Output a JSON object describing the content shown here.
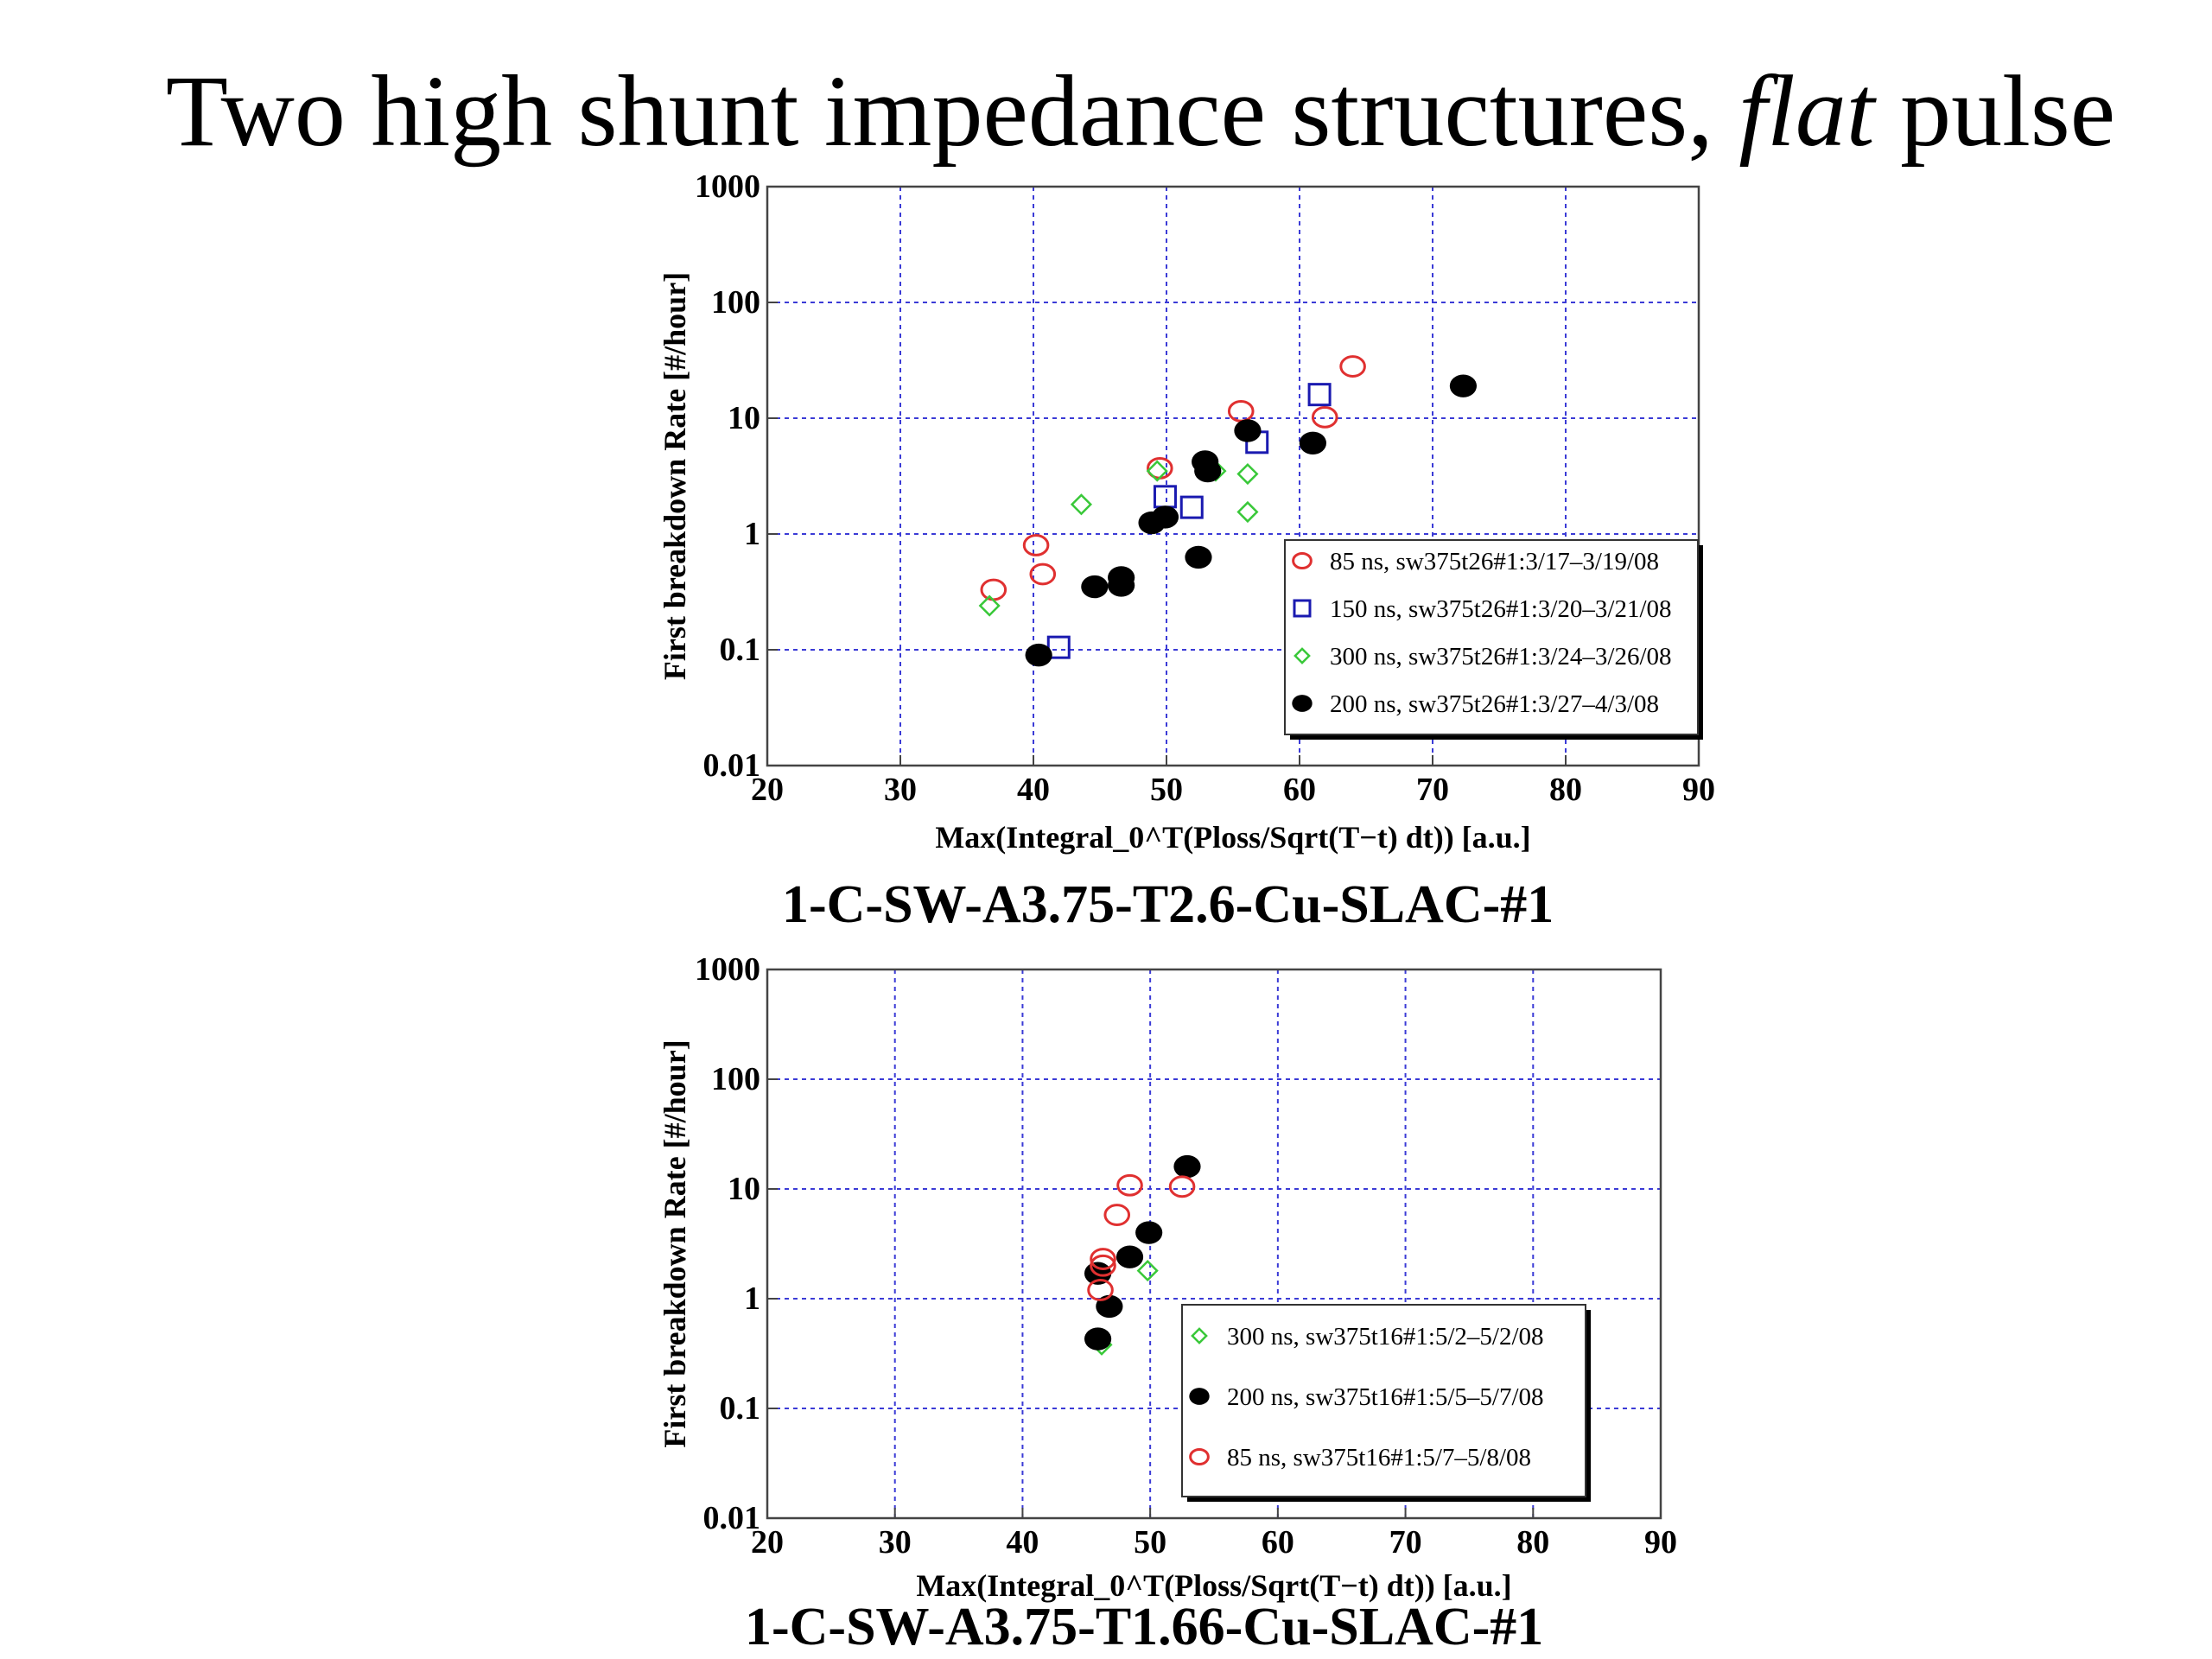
{
  "slide": {
    "title_prefix": "Two high shunt impedance structures, ",
    "title_emph": "flat",
    "title_suffix": " pulse"
  },
  "chart_data": [
    {
      "type": "scatter",
      "title": "1-C-SW-A3.75-T2.6-Cu-SLAC-#1",
      "xlabel": "Max(Integral_0^T(Ploss/Sqrt(T−t) dt)) [a.u.]",
      "ylabel": "First breakdown Rate [#/hour]",
      "xlim": [
        20,
        90
      ],
      "ylim": [
        0.01,
        1000
      ],
      "yscale": "log",
      "xticks": [
        "20",
        "30",
        "40",
        "50",
        "60",
        "70",
        "80",
        "90"
      ],
      "yticks": [
        {
          "value": 0.01,
          "label": "0.01"
        },
        {
          "value": 0.1,
          "label": "0.1"
        },
        {
          "value": 1,
          "label": "1"
        },
        {
          "value": 10,
          "label": "10"
        },
        {
          "value": 100,
          "label": "100"
        },
        {
          "value": 1000,
          "label": "1000"
        }
      ],
      "grid": true,
      "legend_position": "lower-right",
      "series": [
        {
          "name": "85 ns, sw375t26#1:3/17–3/19/08",
          "marker": "open-circle",
          "color": "#e03030",
          "points": [
            [
              37,
              0.33
            ],
            [
              40.2,
              0.8
            ],
            [
              40.7,
              0.45
            ],
            [
              49.5,
              3.7
            ],
            [
              55.6,
              11.5
            ],
            [
              61.9,
              10.2
            ],
            [
              64,
              28
            ]
          ]
        },
        {
          "name": "150 ns, sw375t26#1:3/20–3/21/08",
          "marker": "open-square",
          "color": "#1a1ab0",
          "points": [
            [
              41.9,
              0.105
            ],
            [
              49.9,
              2.1
            ],
            [
              51.9,
              1.7
            ],
            [
              56.8,
              6.2
            ],
            [
              61.5,
              16
            ]
          ]
        },
        {
          "name": "300 ns, sw375t26#1:3/24–3/26/08",
          "marker": "open-diamond",
          "color": "#39c839",
          "points": [
            [
              36.7,
              0.24
            ],
            [
              43.6,
              1.8
            ],
            [
              49.3,
              3.5
            ],
            [
              53.7,
              3.5
            ],
            [
              56.1,
              3.3
            ],
            [
              56.1,
              1.55
            ]
          ]
        },
        {
          "name": "200 ns, sw375t26#1:3/27–4/3/08",
          "marker": "filled-circle",
          "color": "#000000",
          "points": [
            [
              40.4,
              0.09
            ],
            [
              44.6,
              0.35
            ],
            [
              46.6,
              0.42
            ],
            [
              46.6,
              0.36
            ],
            [
              48.9,
              1.25
            ],
            [
              49.9,
              1.4
            ],
            [
              52.4,
              0.63
            ],
            [
              52.9,
              4.2
            ],
            [
              53.1,
              3.5
            ],
            [
              56.1,
              7.8
            ],
            [
              61,
              6.1
            ],
            [
              72.3,
              19
            ]
          ]
        }
      ]
    },
    {
      "type": "scatter",
      "title": "1-C-SW-A3.75-T1.66-Cu-SLAC-#1",
      "xlabel": "Max(Integral_0^T(Ploss/Sqrt(T−t) dt)) [a.u.]",
      "ylabel": "First breakdown Rate [#/hour]",
      "xlim": [
        20,
        90
      ],
      "ylim": [
        0.01,
        1000
      ],
      "yscale": "log",
      "xticks": [
        "20",
        "30",
        "40",
        "50",
        "60",
        "70",
        "80",
        "90"
      ],
      "yticks": [
        {
          "value": 0.01,
          "label": "0.01"
        },
        {
          "value": 0.1,
          "label": "0.1"
        },
        {
          "value": 1,
          "label": "1"
        },
        {
          "value": 10,
          "label": "10"
        },
        {
          "value": 100,
          "label": "100"
        },
        {
          "value": 1000,
          "label": "1000"
        }
      ],
      "grid": true,
      "legend_position": "lower-right",
      "series": [
        {
          "name": "300 ns, sw375t16#1:5/2–5/2/08",
          "marker": "open-diamond",
          "color": "#39c839",
          "points": [
            [
              46.2,
              0.38
            ],
            [
              49.8,
              1.8
            ]
          ]
        },
        {
          "name": "200 ns, sw375t16#1:5/5–5/7/08",
          "marker": "filled-circle",
          "color": "#000000",
          "points": [
            [
              45.9,
              0.43
            ],
            [
              45.9,
              1.7
            ],
            [
              46.8,
              0.85
            ],
            [
              48.4,
              2.4
            ],
            [
              49.9,
              4
            ],
            [
              52.9,
              16
            ]
          ]
        },
        {
          "name": "85 ns, sw375t16#1:5/7–5/8/08",
          "marker": "open-circle",
          "color": "#e03030",
          "points": [
            [
              46.1,
              1.2
            ],
            [
              46.3,
              2
            ],
            [
              46.3,
              2.3
            ],
            [
              47.4,
              5.8
            ],
            [
              48.4,
              10.8
            ],
            [
              52.5,
              10.5
            ]
          ]
        }
      ]
    }
  ]
}
